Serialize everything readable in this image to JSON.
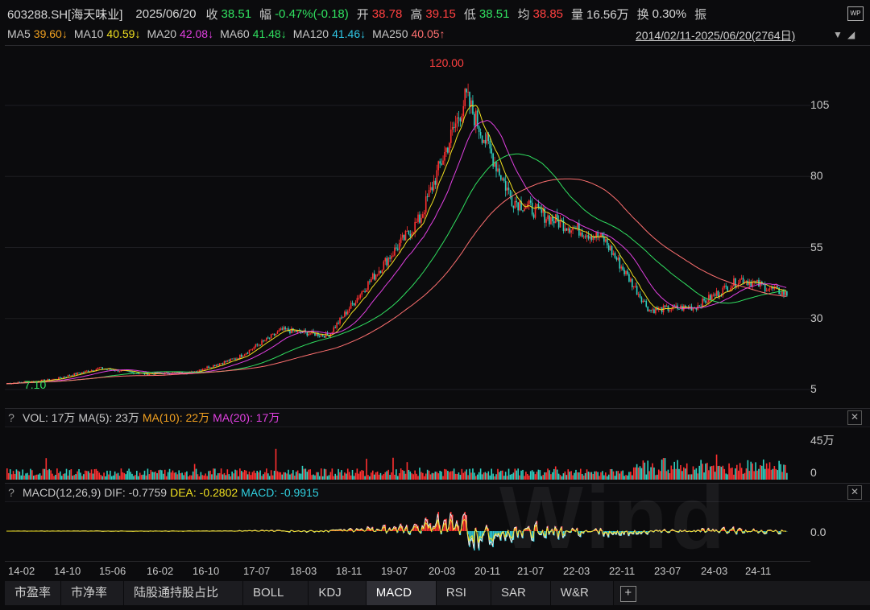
{
  "header": {
    "code": "603288.SH[海天味业]",
    "date": "2025/06/20",
    "close_label": "收",
    "close_value": "38.51",
    "change_label": "幅",
    "change_value": "-0.47%(-0.18)",
    "open_label": "开",
    "open_value": "38.78",
    "high_label": "高",
    "high_value": "39.15",
    "low_label": "低",
    "low_value": "38.51",
    "avg_label": "均",
    "avg_value": "38.85",
    "vol_label": "量",
    "vol_value": "16.56万",
    "turnover_label": "换",
    "turnover_value": "0.30%",
    "amp_label": "振",
    "wp_icon": "WP"
  },
  "ma_bar": {
    "items": [
      {
        "label": "MA5",
        "value": "39.60↓",
        "color": "#f0a020"
      },
      {
        "label": "MA10",
        "value": "40.59↓",
        "color": "#f0e020"
      },
      {
        "label": "MA20",
        "value": "42.08↓",
        "color": "#e040e0"
      },
      {
        "label": "MA60",
        "value": "41.48↓",
        "color": "#30e060"
      },
      {
        "label": "MA120",
        "value": "41.46↓",
        "color": "#30c8e8"
      },
      {
        "label": "MA250",
        "value": "40.05↑",
        "color": "#ff7070"
      }
    ],
    "range": "2014/02/11-2025/06/20(2764日)"
  },
  "main_chart": {
    "y_ticks": [
      "105",
      "80",
      "55",
      "30",
      "5"
    ],
    "max_label": "120.00",
    "min_label": "7.10"
  },
  "vol_panel": {
    "help": "?",
    "title": "VOL: 17万",
    "ma5": "MA(5): 23万",
    "ma10": "MA(10): 22万",
    "ma20": "MA(20): 17万",
    "y_ticks": [
      "45万",
      "0"
    ],
    "close": "✕"
  },
  "macd_panel": {
    "help": "?",
    "title": "MACD(12,26,9)",
    "dif": "DIF: -0.7759",
    "dea": "DEA: -0.2802",
    "macd": "MACD: -0.9915",
    "y_ticks": [
      "0.0"
    ],
    "close": "✕"
  },
  "x_axis": [
    "14-02",
    "14-10",
    "15-06",
    "16-02",
    "16-10",
    "17-07",
    "18-03",
    "18-11",
    "19-07",
    "20-03",
    "20-11",
    "21-07",
    "22-03",
    "22-11",
    "23-07",
    "24-03",
    "24-11"
  ],
  "tabs": [
    "市盈率",
    "市净率",
    "陆股通持股占比",
    "BOLL",
    "KDJ",
    "MACD",
    "RSI",
    "SAR",
    "W&R"
  ],
  "tab_plus": "+",
  "watermark": "Wind",
  "colors": {
    "up": "#ff3030",
    "down": "#30d0c0",
    "bg": "#0b0b0d"
  },
  "chart_data": {
    "type": "line",
    "title": "",
    "x": [
      "14-02",
      "14-10",
      "15-06",
      "16-02",
      "16-10",
      "17-07",
      "18-03",
      "18-11",
      "19-07",
      "20-03",
      "20-11",
      "21-07",
      "22-03",
      "22-11",
      "23-07",
      "24-03",
      "24-11",
      "25-06"
    ],
    "series": [
      {
        "values": [
          7.1,
          8.5,
          12.5,
          10.5,
          11,
          16,
          26,
          24,
          45,
          65,
          108,
          72,
          64,
          58,
          33,
          34,
          44,
          38.5
        ]
      }
    ],
    "ylim": [
      3,
      125
    ]
  }
}
